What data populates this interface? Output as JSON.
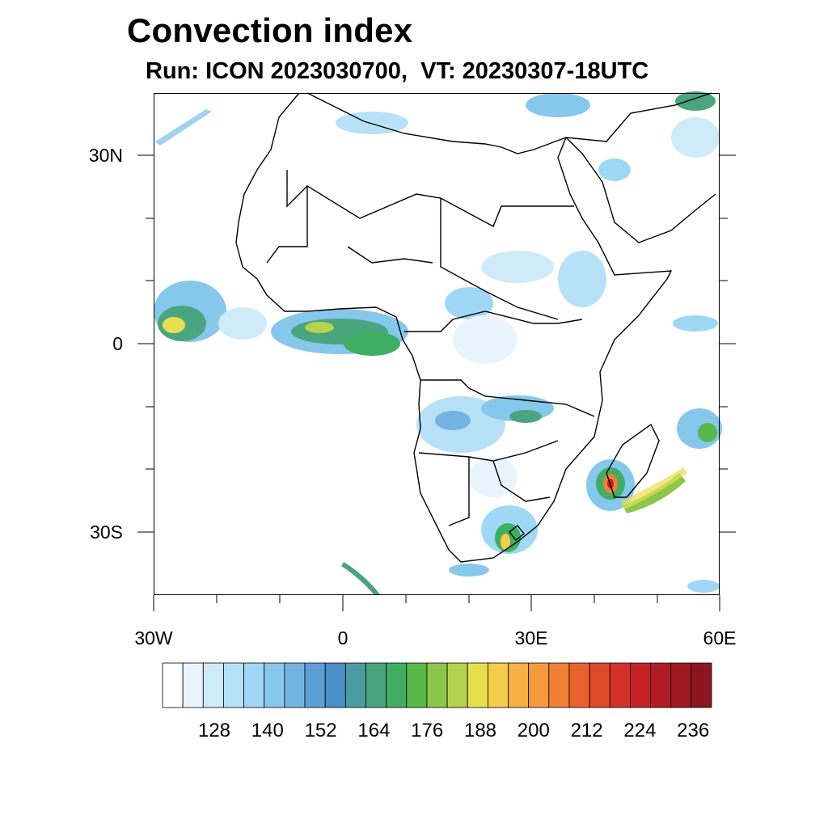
{
  "title": "Convection index",
  "subtitle": "Run: ICON 2023030700,  VT: 20230307-18UTC",
  "map": {
    "lon_range": [
      -30,
      60
    ],
    "lat_range": [
      -40,
      40
    ],
    "lon_tick_labels": [
      "30W",
      "0",
      "30E",
      "60E"
    ],
    "lon_tick_values": [
      -30,
      0,
      30,
      60
    ],
    "lat_tick_labels": [
      "30N",
      "0",
      "30S"
    ],
    "lat_tick_values": [
      30,
      0,
      -30
    ]
  },
  "colorbar": {
    "labels": [
      "128",
      "140",
      "152",
      "164",
      "176",
      "188",
      "200",
      "212",
      "224",
      "236"
    ],
    "colors": [
      "#ffffff",
      "#e8f5fc",
      "#cfeaf8",
      "#b6e1f6",
      "#9fd8f4",
      "#86c7ec",
      "#74b4e2",
      "#5c9fd6",
      "#4a8fc7",
      "#4a9ca2",
      "#4aa57e",
      "#3fae62",
      "#58b84a",
      "#8cc64a",
      "#b5d34c",
      "#e7e04e",
      "#f6cc4a",
      "#f7b043",
      "#f59a3c",
      "#f07f34",
      "#e9622c",
      "#df4a2a",
      "#d43228",
      "#c42226",
      "#b21a24",
      "#a01822",
      "#8c1520"
    ]
  }
}
